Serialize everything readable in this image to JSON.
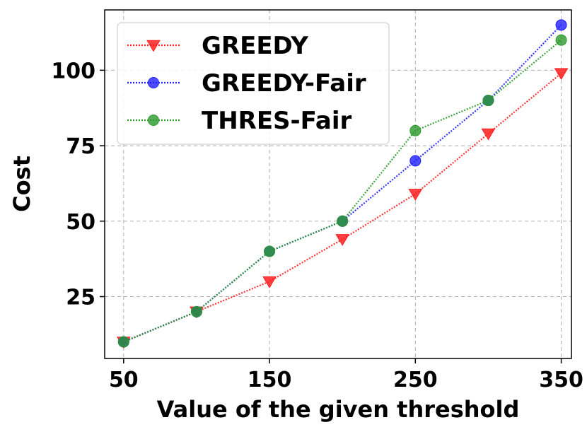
{
  "chart_data": {
    "type": "line",
    "xlabel": "Value of the given threshold",
    "ylabel": "Cost",
    "x": [
      50,
      100,
      150,
      200,
      250,
      300,
      350
    ],
    "xticks": [
      "50",
      "150",
      "250",
      "350"
    ],
    "yticks": [
      "25",
      "50",
      "75",
      "100"
    ],
    "xlim": [
      37,
      357
    ],
    "ylim": [
      4.5,
      120
    ],
    "grid": true,
    "legend": "upper-left",
    "series": [
      {
        "name": "GREEDY",
        "values": [
          10,
          20,
          30,
          44,
          59,
          79,
          99
        ],
        "color": "#ff2020",
        "marker": "triangle-down"
      },
      {
        "name": "GREEDY-Fair",
        "values": [
          10,
          20,
          40,
          50,
          70,
          90,
          115
        ],
        "color": "#2020ff",
        "marker": "circle"
      },
      {
        "name": "THRES-Fair",
        "values": [
          10,
          20,
          40,
          50,
          80,
          90,
          110
        ],
        "color": "#2a9a2a",
        "marker": "circle"
      }
    ]
  }
}
